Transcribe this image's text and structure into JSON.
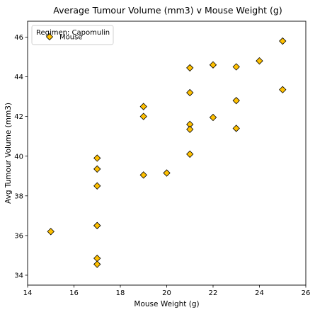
{
  "chart_data": {
    "type": "scatter",
    "title": "Average Tumour Volume (mm3) v Mouse Weight (g)",
    "xlabel": "Mouse Weight (g)",
    "ylabel": "Avg Tumour Volume (mm3)",
    "xlim": [
      14,
      26
    ],
    "ylim": [
      33.5,
      46.8
    ],
    "xticks": [
      14,
      16,
      18,
      20,
      22,
      24,
      26
    ],
    "yticks": [
      34,
      36,
      38,
      40,
      42,
      44,
      46
    ],
    "grid": false,
    "legend": {
      "title": "Regimen: Capomulin",
      "placement": "top-left",
      "entries": [
        "Mouse"
      ]
    },
    "marker": {
      "shape": "diamond",
      "fill": "#FFC000",
      "edge": "#000000"
    },
    "series": [
      {
        "name": "Mouse",
        "points": [
          {
            "x": 15,
            "y": 36.2
          },
          {
            "x": 17,
            "y": 39.9
          },
          {
            "x": 17,
            "y": 39.35
          },
          {
            "x": 17,
            "y": 38.5
          },
          {
            "x": 17,
            "y": 36.5
          },
          {
            "x": 17,
            "y": 36.5
          },
          {
            "x": 17,
            "y": 34.85
          },
          {
            "x": 17,
            "y": 34.55
          },
          {
            "x": 19,
            "y": 42.5
          },
          {
            "x": 19,
            "y": 42.0
          },
          {
            "x": 19,
            "y": 39.05
          },
          {
            "x": 20,
            "y": 39.15
          },
          {
            "x": 21,
            "y": 44.45
          },
          {
            "x": 21,
            "y": 43.2
          },
          {
            "x": 21,
            "y": 41.6
          },
          {
            "x": 21,
            "y": 41.35
          },
          {
            "x": 21,
            "y": 40.1
          },
          {
            "x": 22,
            "y": 44.6
          },
          {
            "x": 22,
            "y": 41.95
          },
          {
            "x": 23,
            "y": 44.5
          },
          {
            "x": 23,
            "y": 42.8
          },
          {
            "x": 23,
            "y": 41.4
          },
          {
            "x": 24,
            "y": 44.8
          },
          {
            "x": 25,
            "y": 45.8
          },
          {
            "x": 25,
            "y": 43.35
          }
        ]
      }
    ]
  }
}
